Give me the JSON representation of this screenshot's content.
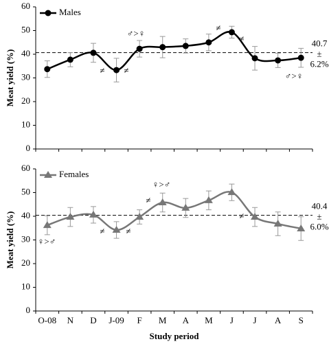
{
  "chart_data": [
    {
      "type": "line",
      "y_label": "Meat yield (%)",
      "ylim": [
        0,
        60
      ],
      "yticks": [
        0,
        10,
        20,
        30,
        40,
        50,
        60
      ],
      "series": [
        {
          "name": "Males",
          "color": "#000000",
          "marker": "circle",
          "values": [
            33.7,
            37.7,
            40.6,
            33.3,
            42.3,
            43.0,
            43.5,
            45.0,
            49.3,
            38.3,
            37.4,
            38.5
          ],
          "errors": [
            3.5,
            3.0,
            4.0,
            5.0,
            3.5,
            4.5,
            3.0,
            3.5,
            2.5,
            5.0,
            3.0,
            4.0
          ]
        }
      ],
      "mean": 40.7,
      "mean_annotation": [
        "40.7",
        "±",
        "6.2%"
      ],
      "annotations": [
        "≠",
        "≠",
        "♂>♀",
        "≠",
        "≠",
        "♂>♀"
      ]
    },
    {
      "type": "line",
      "y_label": "Meat yield (%)",
      "x_label": "Study period",
      "ylim": [
        0,
        60
      ],
      "yticks": [
        0,
        10,
        20,
        30,
        40,
        50,
        60
      ],
      "categories": [
        "O-08",
        "N",
        "D",
        "J-09",
        "F",
        "M",
        "A",
        "M",
        "J",
        "J",
        "A",
        "S"
      ],
      "series": [
        {
          "name": "Females",
          "color": "#777777",
          "marker": "triangle",
          "values": [
            36.2,
            39.7,
            40.6,
            34.2,
            39.7,
            45.8,
            43.5,
            46.7,
            50.1,
            39.7,
            36.8,
            34.8
          ],
          "errors": [
            4.0,
            4.0,
            3.5,
            3.5,
            3.0,
            4.0,
            4.0,
            4.0,
            3.5,
            4.0,
            5.0,
            5.0
          ]
        }
      ],
      "mean": 40.4,
      "mean_annotation": [
        "40.4",
        "±",
        "6.0%"
      ],
      "annotations": [
        "♀>♂",
        "≠",
        "≠",
        "≠",
        "♀>♂",
        "≠"
      ]
    }
  ]
}
